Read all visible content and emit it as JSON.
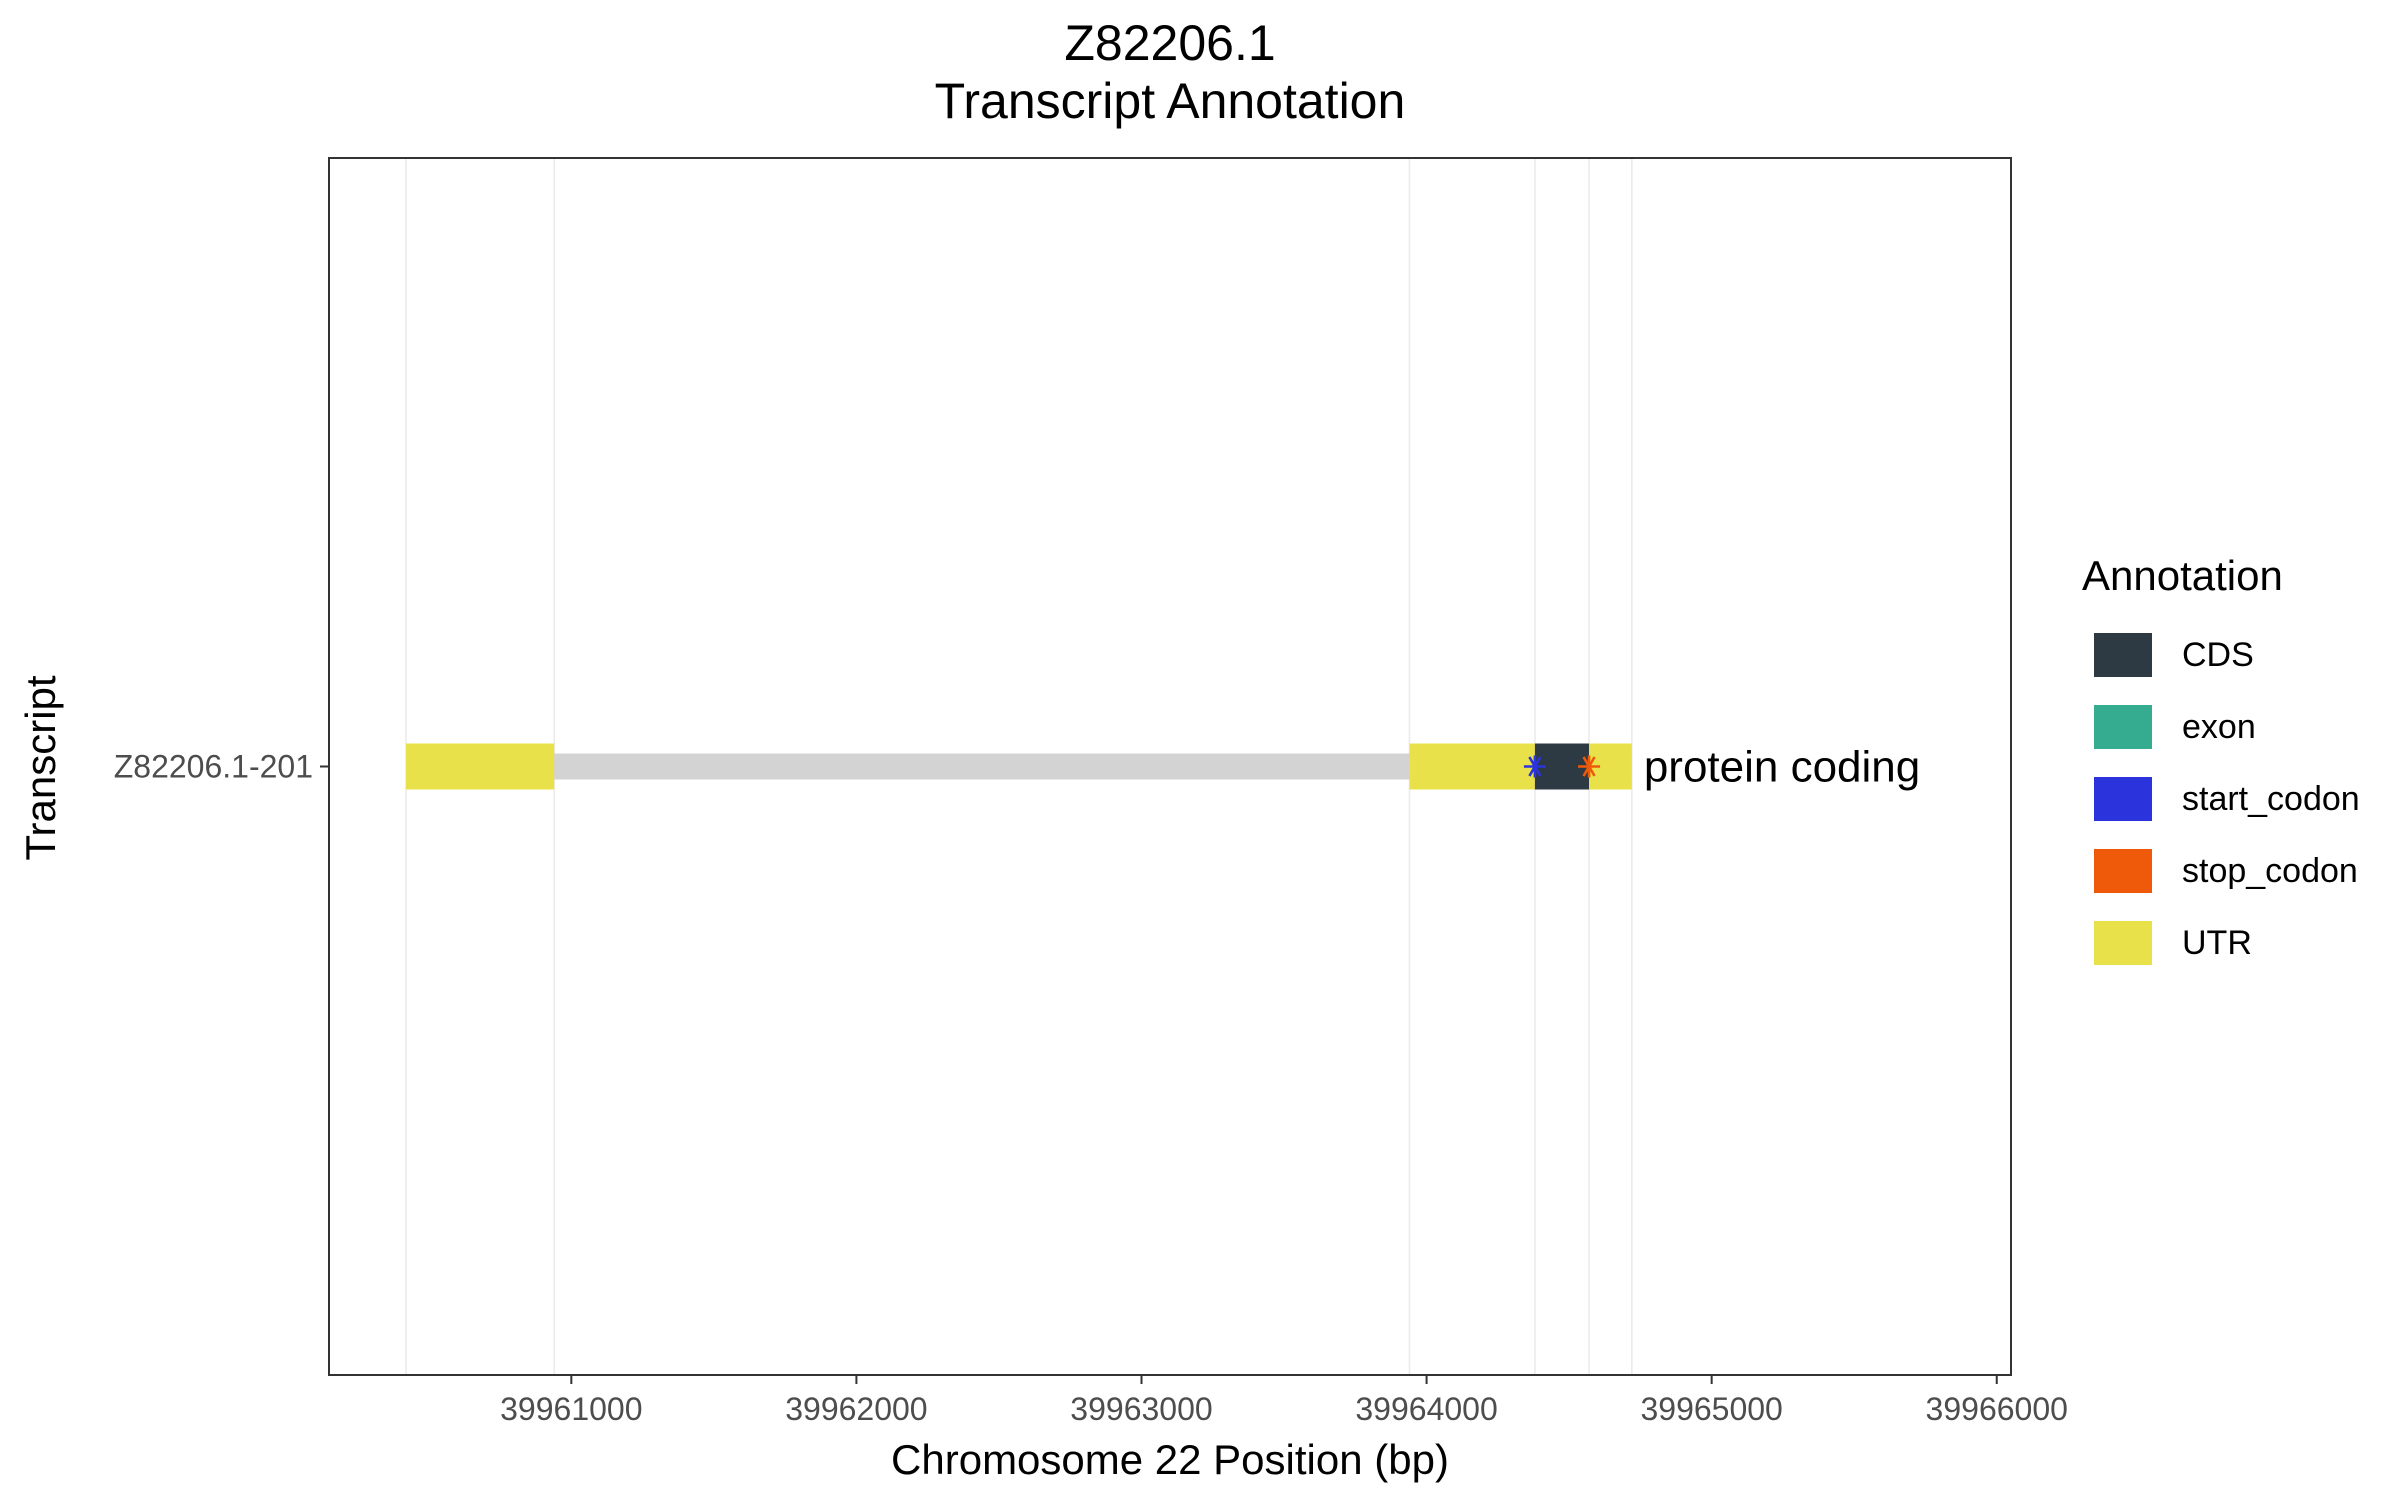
{
  "chart_data": {
    "type": "gene-track",
    "title": "Z82206.1",
    "subtitle": "Transcript Annotation",
    "xlabel": "Chromosome 22 Position (bp)",
    "ylabel": "Transcript",
    "xlim": [
      39960150,
      39966050
    ],
    "x_ticks": [
      39961000,
      39962000,
      39963000,
      39964000,
      39965000,
      39966000
    ],
    "x_tick_labels": [
      "39961000",
      "39962000",
      "39963000",
      "39964000",
      "39965000",
      "39966000"
    ],
    "grid": "vertical",
    "legend": {
      "title": "Annotation",
      "position": "right",
      "items": [
        {
          "label": "CDS",
          "color": "#2e3a43"
        },
        {
          "label": "exon",
          "color": "#35ac8f"
        },
        {
          "label": "start_codon",
          "color": "#2b33dd"
        },
        {
          "label": "stop_codon",
          "color": "#ee5a0a"
        },
        {
          "label": "UTR",
          "color": "#e9e149"
        }
      ]
    },
    "transcripts": [
      {
        "name": "Z82206.1-201",
        "biotype_label": "protein coding",
        "span": [
          39960420,
          39964720
        ],
        "intron_color": "#d3d3d3",
        "features": [
          {
            "type": "UTR",
            "start": 39960420,
            "end": 39960940
          },
          {
            "type": "UTR",
            "start": 39963940,
            "end": 39964380
          },
          {
            "type": "CDS",
            "start": 39964380,
            "end": 39964570
          },
          {
            "type": "UTR",
            "start": 39964570,
            "end": 39964720
          }
        ],
        "codons": [
          {
            "type": "start_codon",
            "position": 39964380
          },
          {
            "type": "stop_codon",
            "position": 39964570
          }
        ]
      }
    ]
  }
}
